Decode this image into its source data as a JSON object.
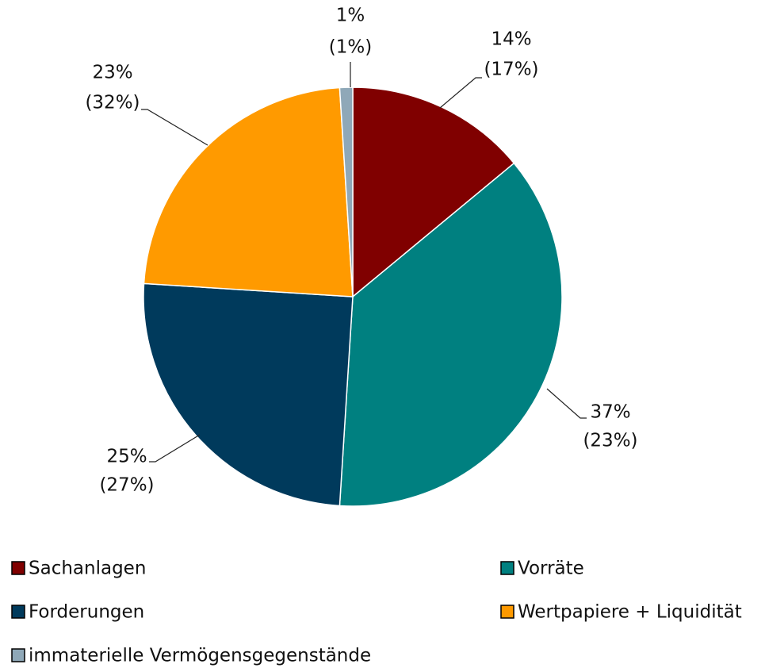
{
  "chart_data": {
    "type": "pie",
    "categories": [
      "Sachanlagen",
      "Vorräte",
      "Forderungen",
      "Wertpapiere + Liquidität",
      "immaterielle Vermögensgegenstände"
    ],
    "values": [
      14,
      37,
      25,
      23,
      1
    ],
    "value_labels": [
      "14%",
      "37%",
      "25%",
      "23%",
      "1%"
    ],
    "prior_values": [
      17,
      23,
      27,
      32,
      1
    ],
    "prior_value_labels": [
      "(17%)",
      "(23%)",
      "(27%)",
      "(32%)",
      "(1%)"
    ],
    "colors": [
      "#800000",
      "#008080",
      "#003a5c",
      "#ff9a00",
      "#8fa8b8"
    ],
    "legend": "bottom"
  }
}
